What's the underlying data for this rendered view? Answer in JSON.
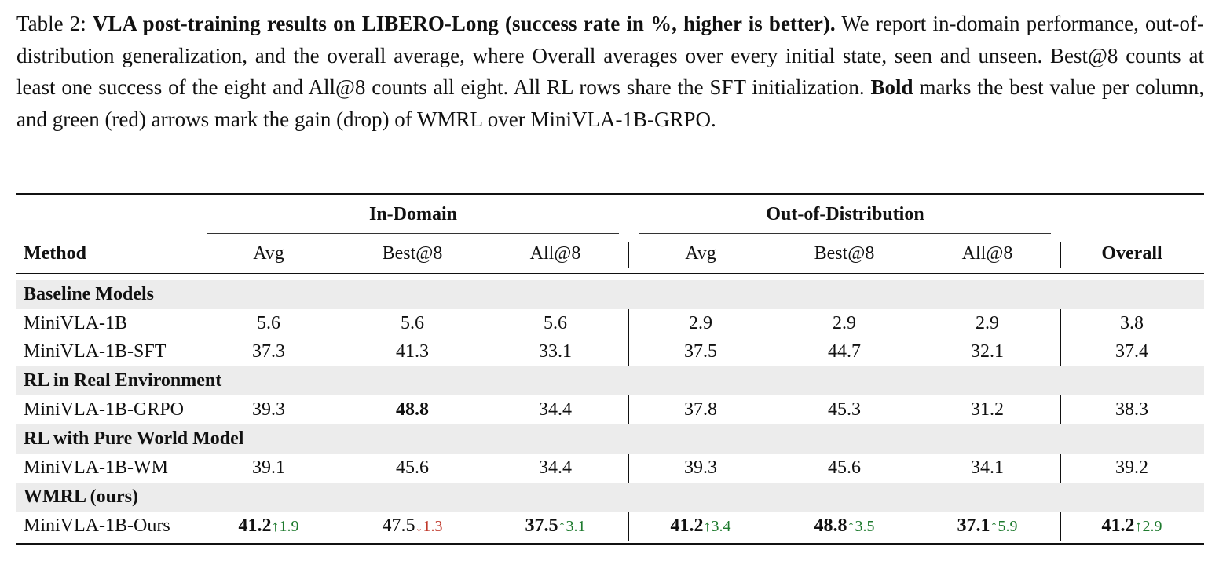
{
  "caption": {
    "prefix": "Table 2: ",
    "bold": "VLA post-training results on LIBERO-Long (success rate in %, higher is better).",
    "body1": " We report in-domain performance, out-of-distribution generalization, and the overall average, where Overall averages over every initial state, seen and unseen. Best@8 counts at least one success of the eight and All@8 counts all eight. All RL rows share the SFT initialization. ",
    "bold2": "Bold",
    "body2": " marks the best value per column, and green (red) arrows mark the gain (drop) of WMRL over MiniVLA-1B-GRPO."
  },
  "header": {
    "group_in": "In-Domain",
    "group_ood": "Out-of-Distribution",
    "method": "Method",
    "cols": [
      "Avg",
      "Best@8",
      "All@8",
      "Avg",
      "Best@8",
      "All@8"
    ],
    "overall": "Overall"
  },
  "sections": {
    "baseline": "Baseline Models",
    "rl_real": "RL in Real Environment",
    "rl_wm": "RL with Pure World Model",
    "wmrl": "WMRL (ours)"
  },
  "rows": {
    "minivla": {
      "name": "MiniVLA-1B",
      "v": [
        "5.6",
        "5.6",
        "5.6",
        "2.9",
        "2.9",
        "2.9",
        "3.8"
      ]
    },
    "sft": {
      "name": "MiniVLA-1B-SFT",
      "v": [
        "37.3",
        "41.3",
        "33.1",
        "37.5",
        "44.7",
        "32.1",
        "37.4"
      ]
    },
    "grpo": {
      "name": "MiniVLA-1B-GRPO",
      "v": [
        "39.3",
        "48.8",
        "34.4",
        "37.8",
        "45.3",
        "31.2",
        "38.3"
      ]
    },
    "wm": {
      "name": "MiniVLA-1B-WM",
      "v": [
        "39.1",
        "45.6",
        "34.4",
        "39.3",
        "45.6",
        "34.1",
        "39.2"
      ]
    },
    "ours": {
      "name": "MiniVLA-1B-Ours",
      "v": [
        "41.2",
        "47.5",
        "37.5",
        "41.2",
        "48.8",
        "37.1",
        "41.2"
      ],
      "delta": [
        "1.9",
        "1.3",
        "3.1",
        "3.4",
        "3.5",
        "5.9",
        "2.9"
      ]
    }
  },
  "arrows": {
    "up": "↑",
    "down": "↓"
  },
  "colors": {
    "gain": "#1e7a2e",
    "drop": "#c0392b",
    "section_bg": "#ececec"
  }
}
